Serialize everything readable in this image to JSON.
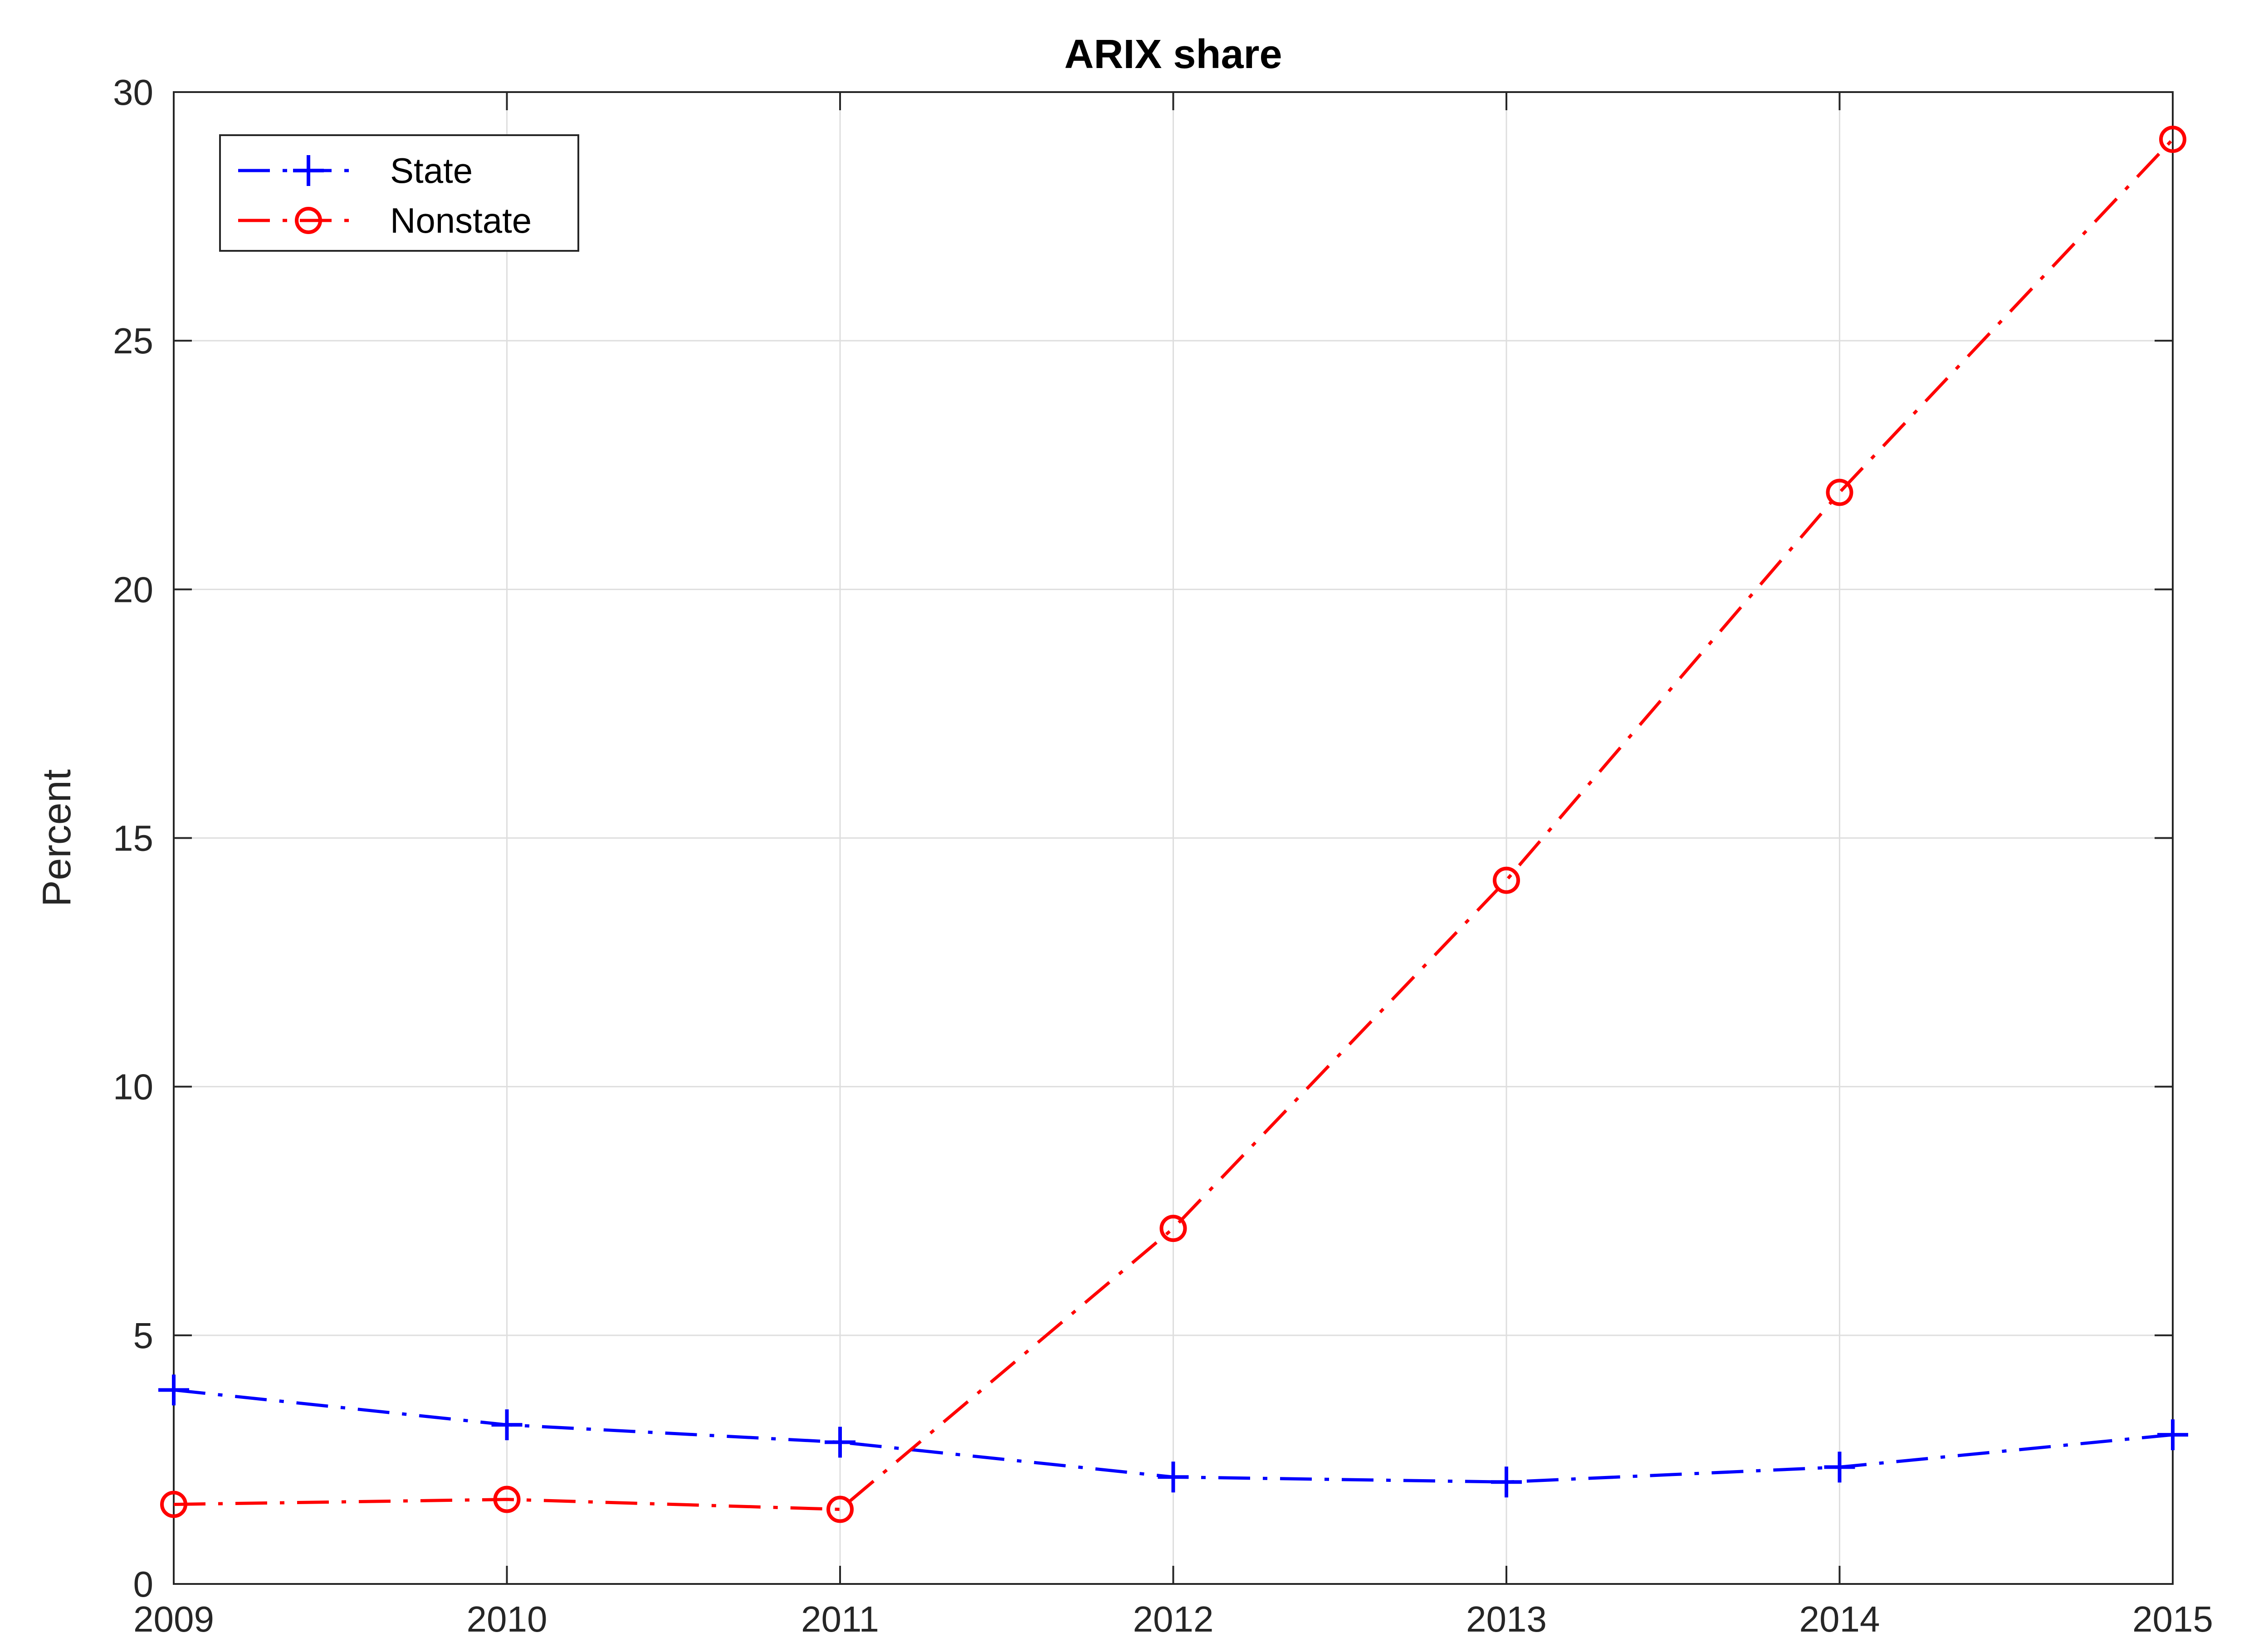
{
  "chart_data": {
    "type": "line",
    "title": "ARIX share",
    "xlabel": "",
    "ylabel": "Percent",
    "x": [
      2009,
      2010,
      2011,
      2012,
      2013,
      2014,
      2015
    ],
    "xlim": [
      2009,
      2015
    ],
    "ylim": [
      0,
      30
    ],
    "xticks": [
      2009,
      2010,
      2011,
      2012,
      2013,
      2014,
      2015
    ],
    "yticks": [
      0,
      5,
      10,
      15,
      20,
      25,
      30
    ],
    "grid": true,
    "legend_position": "top-left",
    "series": [
      {
        "name": "State",
        "values": [
          3.9,
          3.2,
          2.85,
          2.15,
          2.05,
          2.35,
          3.0
        ],
        "color": "#0000ff",
        "line_style": "dash-dot",
        "marker": "plus"
      },
      {
        "name": "Nonstate",
        "values": [
          1.6,
          1.7,
          1.5,
          7.15,
          14.15,
          21.95,
          29.05
        ],
        "color": "#ff0000",
        "line_style": "dash-dot",
        "marker": "circle"
      }
    ]
  }
}
